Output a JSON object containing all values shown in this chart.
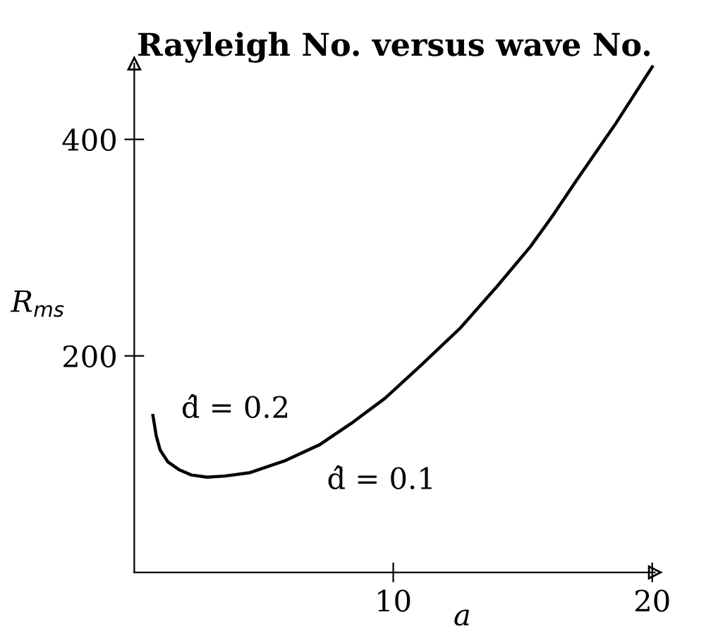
{
  "chart_data": {
    "type": "line",
    "title": "Rayleigh No. versus wave No.",
    "xlabel": "a",
    "ylabel": "R$_{ms}$",
    "x": [
      0.72,
      0.85,
      1.0,
      1.3,
      1.72,
      2.2,
      2.81,
      3.5,
      4.44,
      5.8,
      7.16,
      8.4,
      9.69,
      11.1,
      12.6,
      14.0,
      15.3,
      16.2,
      17.1,
      18.6,
      20.0
    ],
    "series": [
      {
        "color": "#000000",
        "values": [
          145,
          126,
          113,
          102,
          95,
          90,
          88,
          89,
          92,
          103,
          118,
          138,
          161,
          192,
          226,
          264,
          301,
          331,
          363,
          415,
          467
        ]
      }
    ],
    "xlim": [
      0,
      20.1
    ],
    "ylim": [
      0,
      470
    ],
    "xticks": [
      10,
      20
    ],
    "yticks": [
      200,
      400
    ],
    "grid": false,
    "line_style": "solid",
    "annotations": [
      "d̂ = 0.2",
      "d̂ = 0.1"
    ]
  }
}
